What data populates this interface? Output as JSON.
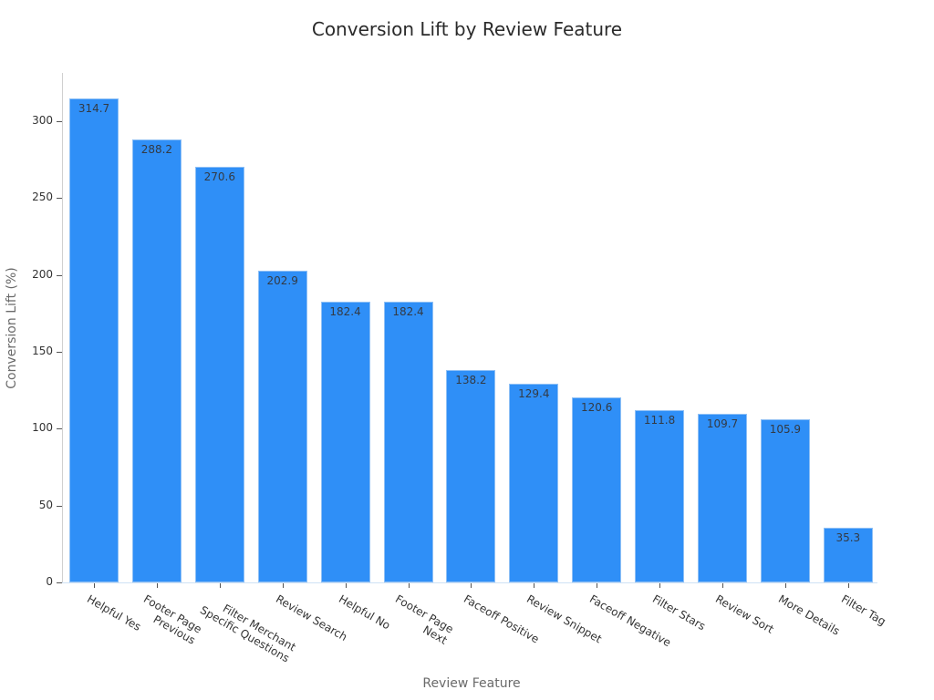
{
  "chart_data": {
    "type": "bar",
    "title": "Conversion Lift by Review Feature",
    "xlabel": "Review Feature",
    "ylabel": "Conversion Lift (%)",
    "ylim": [
      0,
      330
    ],
    "yticks": [
      0,
      50,
      100,
      150,
      200,
      250,
      300
    ],
    "grid": false,
    "legend": null,
    "bar_color": "#2f8ff7",
    "categories": [
      "Helpful Yes",
      "Footer Page Previous",
      "Filter Merchant Specific Questions",
      "Review Search",
      "Helpful No",
      "Footer Page Next",
      "Faceoff Positive",
      "Review Snippet",
      "Faceoff Negative",
      "Filter Stars",
      "Review Sort",
      "More Details",
      "Filter Tag"
    ],
    "values": [
      314.7,
      288.2,
      270.6,
      202.9,
      182.4,
      182.4,
      138.2,
      129.4,
      120.6,
      111.8,
      109.7,
      105.9,
      35.3
    ],
    "value_labels": [
      "314.7",
      "288.2",
      "270.6",
      "202.9",
      "182.4",
      "182.4",
      "138.2",
      "129.4",
      "120.6",
      "111.8",
      "109.7",
      "105.9",
      "35.3"
    ],
    "tick_labels_display": [
      [
        "Helpful Yes"
      ],
      [
        "Footer Page",
        "Previous"
      ],
      [
        "Filter Merchant",
        "Specific Questions"
      ],
      [
        "Review Search"
      ],
      [
        "Helpful No"
      ],
      [
        "Footer Page",
        "Next"
      ],
      [
        "Faceoff Positive"
      ],
      [
        "Review Snippet"
      ],
      [
        "Faceoff Negative"
      ],
      [
        "Filter Stars"
      ],
      [
        "Review Sort"
      ],
      [
        "More Details"
      ],
      [
        "Filter Tag"
      ]
    ]
  }
}
